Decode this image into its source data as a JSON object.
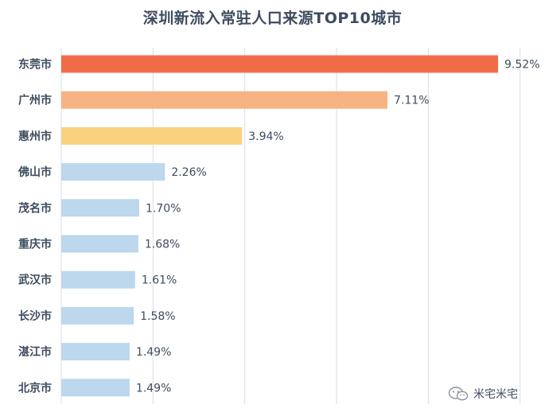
{
  "chart_data": {
    "type": "bar",
    "orientation": "horizontal",
    "title": "深圳新流入常驻人口来源TOP10城市",
    "categories": [
      "东莞市",
      "广州市",
      "惠州市",
      "佛山市",
      "茂名市",
      "重庆市",
      "武汉市",
      "长沙市",
      "湛江市",
      "北京市"
    ],
    "values": [
      9.52,
      7.11,
      3.94,
      2.26,
      1.7,
      1.68,
      1.61,
      1.58,
      1.49,
      1.49
    ],
    "value_labels": [
      "9.52%",
      "7.11%",
      "3.94%",
      "2.26%",
      "1.70%",
      "1.68%",
      "1.61%",
      "1.58%",
      "1.49%",
      "1.49%"
    ],
    "colors": [
      "#f26b49",
      "#f7b383",
      "#fad27f",
      "#bdd7ec",
      "#bdd7ec",
      "#bdd7ec",
      "#bdd7ec",
      "#bdd7ec",
      "#bdd7ec",
      "#bdd7ec"
    ],
    "xlim": [
      0,
      10
    ],
    "grid": true,
    "xlabel": "",
    "ylabel": ""
  },
  "watermark": {
    "text": "米宅米宅",
    "icon": "wechat-icon"
  },
  "colors": {
    "title": "#3e4c5e",
    "label": "#3e4c5e",
    "grid": "#d9dde3"
  }
}
